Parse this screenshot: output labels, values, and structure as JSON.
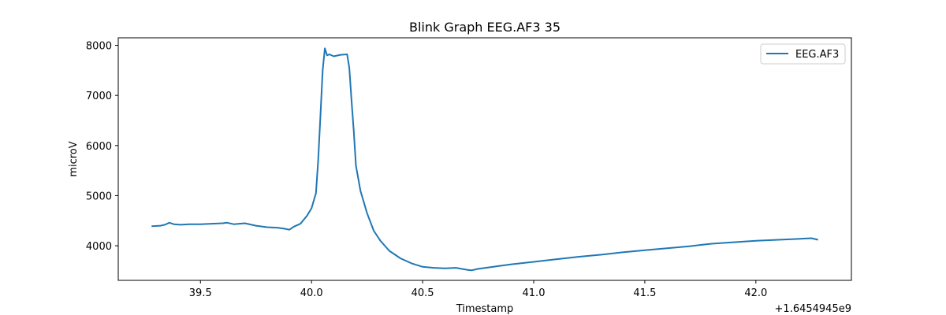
{
  "chart_data": {
    "type": "line",
    "title": "Blink Graph EEG.AF3 35",
    "xlabel": "Timestamp",
    "ylabel": "microV",
    "x_offset_label": "+1.6454945e9",
    "xlim": [
      39.13,
      42.43
    ],
    "ylim": [
      3310,
      8150
    ],
    "x_ticks": [
      39.5,
      40.0,
      40.5,
      41.0,
      41.5,
      42.0
    ],
    "x_tick_labels": [
      "39.5",
      "40.0",
      "40.5",
      "41.0",
      "41.5",
      "42.0"
    ],
    "y_ticks": [
      4000,
      5000,
      6000,
      7000,
      8000
    ],
    "y_tick_labels": [
      "4000",
      "5000",
      "6000",
      "7000",
      "8000"
    ],
    "grid": false,
    "legend_position": "top-right",
    "series": [
      {
        "name": "EEG.AF3",
        "color": "#1f77b4",
        "x": [
          39.28,
          39.32,
          39.34,
          39.36,
          39.38,
          39.41,
          39.45,
          39.5,
          39.55,
          39.6,
          39.62,
          39.65,
          39.7,
          39.75,
          39.8,
          39.85,
          39.88,
          39.9,
          39.92,
          39.95,
          39.98,
          40.0,
          40.01,
          40.02,
          40.03,
          40.04,
          40.05,
          40.06,
          40.07,
          40.08,
          40.1,
          40.13,
          40.16,
          40.17,
          40.18,
          40.19,
          40.2,
          40.22,
          40.25,
          40.28,
          40.31,
          40.35,
          40.4,
          40.45,
          40.5,
          40.55,
          40.6,
          40.65,
          40.7,
          40.72,
          40.75,
          40.8,
          40.85,
          40.9,
          41.0,
          41.1,
          41.2,
          41.3,
          41.4,
          41.5,
          41.6,
          41.7,
          41.8,
          41.9,
          42.0,
          42.1,
          42.2,
          42.25,
          42.28
        ],
        "y": [
          4390,
          4400,
          4420,
          4460,
          4430,
          4420,
          4430,
          4430,
          4440,
          4450,
          4460,
          4430,
          4450,
          4400,
          4370,
          4360,
          4340,
          4320,
          4380,
          4440,
          4600,
          4750,
          4900,
          5050,
          5700,
          6600,
          7500,
          7940,
          7800,
          7820,
          7780,
          7810,
          7820,
          7550,
          6900,
          6300,
          5600,
          5100,
          4650,
          4300,
          4100,
          3900,
          3750,
          3650,
          3580,
          3560,
          3550,
          3560,
          3520,
          3510,
          3540,
          3570,
          3600,
          3630,
          3680,
          3730,
          3780,
          3820,
          3870,
          3910,
          3950,
          3990,
          4040,
          4070,
          4100,
          4120,
          4140,
          4150,
          4120
        ]
      }
    ]
  }
}
